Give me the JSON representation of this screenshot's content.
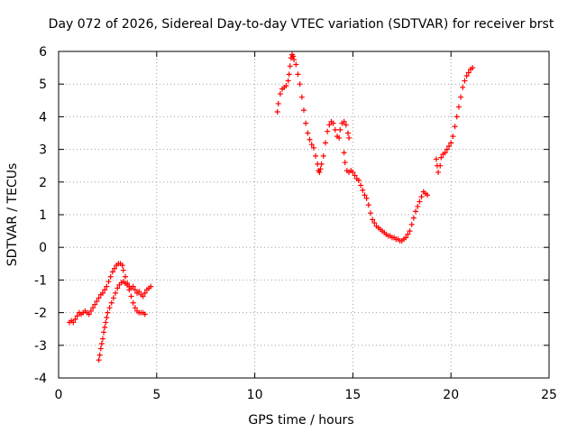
{
  "chart_data": {
    "type": "scatter",
    "title": "Day 072 of 2026, Sidereal Day-to-day VTEC variation (SDTVAR) for receiver brst",
    "xlabel": "GPS time / hours",
    "ylabel": "SDTVAR / TECUs",
    "xlim": [
      0,
      25
    ],
    "ylim": [
      -4,
      6
    ],
    "xticks": [
      "0",
      "5",
      "10",
      "15",
      "20",
      "25"
    ],
    "yticks": [
      "-4",
      "-3",
      "-2",
      "-1",
      "0",
      "1",
      "2",
      "3",
      "4",
      "5",
      "6"
    ],
    "grid": true,
    "marker": "+",
    "series": [
      {
        "name": "SDTVAR",
        "color": "#ff0000",
        "points": [
          [
            0.55,
            -2.3
          ],
          [
            0.65,
            -2.25
          ],
          [
            0.75,
            -2.3
          ],
          [
            0.85,
            -2.2
          ],
          [
            0.95,
            -2.1
          ],
          [
            1.05,
            -2.0
          ],
          [
            1.15,
            -2.05
          ],
          [
            1.25,
            -2.0
          ],
          [
            1.35,
            -1.95
          ],
          [
            1.45,
            -2.0
          ],
          [
            1.55,
            -2.05
          ],
          [
            1.65,
            -1.95
          ],
          [
            1.75,
            -1.85
          ],
          [
            1.85,
            -1.75
          ],
          [
            1.95,
            -1.65
          ],
          [
            2.05,
            -1.55
          ],
          [
            2.15,
            -1.45
          ],
          [
            2.25,
            -1.4
          ],
          [
            2.35,
            -1.3
          ],
          [
            2.45,
            -1.2
          ],
          [
            2.55,
            -1.05
          ],
          [
            2.65,
            -0.9
          ],
          [
            2.75,
            -0.75
          ],
          [
            2.85,
            -0.65
          ],
          [
            2.95,
            -0.55
          ],
          [
            3.05,
            -0.5
          ],
          [
            3.15,
            -0.5
          ],
          [
            3.25,
            -0.55
          ],
          [
            3.3,
            -0.7
          ],
          [
            3.4,
            -0.9
          ],
          [
            3.5,
            -1.1
          ],
          [
            3.6,
            -1.3
          ],
          [
            3.7,
            -1.5
          ],
          [
            3.8,
            -1.7
          ],
          [
            3.9,
            -1.85
          ],
          [
            4.0,
            -1.95
          ],
          [
            4.1,
            -2.0
          ],
          [
            4.2,
            -2.0
          ],
          [
            4.3,
            -2.0
          ],
          [
            4.4,
            -2.05
          ],
          [
            2.05,
            -3.45
          ],
          [
            2.1,
            -3.3
          ],
          [
            2.15,
            -3.1
          ],
          [
            2.2,
            -2.95
          ],
          [
            2.25,
            -2.8
          ],
          [
            2.3,
            -2.6
          ],
          [
            2.35,
            -2.45
          ],
          [
            2.4,
            -2.3
          ],
          [
            2.45,
            -2.15
          ],
          [
            2.5,
            -2.0
          ],
          [
            2.6,
            -1.85
          ],
          [
            2.7,
            -1.7
          ],
          [
            2.8,
            -1.55
          ],
          [
            2.9,
            -1.4
          ],
          [
            3.0,
            -1.25
          ],
          [
            3.1,
            -1.15
          ],
          [
            3.2,
            -1.08
          ],
          [
            3.3,
            -1.05
          ],
          [
            3.4,
            -1.1
          ],
          [
            3.5,
            -1.15
          ],
          [
            3.6,
            -1.2
          ],
          [
            3.7,
            -1.25
          ],
          [
            3.8,
            -1.2
          ],
          [
            3.9,
            -1.3
          ],
          [
            4.0,
            -1.4
          ],
          [
            4.1,
            -1.35
          ],
          [
            4.2,
            -1.45
          ],
          [
            4.3,
            -1.5
          ],
          [
            4.4,
            -1.4
          ],
          [
            4.5,
            -1.3
          ],
          [
            4.6,
            -1.25
          ],
          [
            4.7,
            -1.2
          ],
          [
            11.15,
            4.15
          ],
          [
            11.2,
            4.4
          ],
          [
            11.3,
            4.7
          ],
          [
            11.4,
            4.85
          ],
          [
            11.5,
            4.9
          ],
          [
            11.6,
            4.95
          ],
          [
            11.7,
            5.1
          ],
          [
            11.75,
            5.3
          ],
          [
            11.8,
            5.55
          ],
          [
            11.85,
            5.8
          ],
          [
            11.9,
            5.9
          ],
          [
            11.95,
            5.85
          ],
          [
            12.0,
            5.75
          ],
          [
            12.1,
            5.6
          ],
          [
            12.2,
            5.3
          ],
          [
            12.3,
            5.0
          ],
          [
            12.4,
            4.6
          ],
          [
            12.5,
            4.2
          ],
          [
            12.6,
            3.8
          ],
          [
            12.7,
            3.5
          ],
          [
            12.8,
            3.3
          ],
          [
            12.9,
            3.15
          ],
          [
            13.0,
            3.05
          ],
          [
            13.1,
            2.8
          ],
          [
            13.2,
            2.55
          ],
          [
            13.25,
            2.35
          ],
          [
            13.3,
            2.3
          ],
          [
            13.35,
            2.4
          ],
          [
            13.4,
            2.55
          ],
          [
            13.5,
            2.8
          ],
          [
            13.6,
            3.2
          ],
          [
            13.7,
            3.55
          ],
          [
            13.8,
            3.75
          ],
          [
            13.9,
            3.85
          ],
          [
            14.0,
            3.8
          ],
          [
            14.1,
            3.6
          ],
          [
            14.2,
            3.4
          ],
          [
            14.3,
            3.35
          ],
          [
            14.35,
            3.6
          ],
          [
            14.45,
            3.8
          ],
          [
            14.55,
            3.85
          ],
          [
            14.65,
            3.75
          ],
          [
            14.75,
            3.5
          ],
          [
            14.8,
            3.35
          ],
          [
            14.55,
            2.9
          ],
          [
            14.6,
            2.6
          ],
          [
            14.7,
            2.35
          ],
          [
            14.8,
            2.3
          ],
          [
            14.9,
            2.35
          ],
          [
            15.0,
            2.3
          ],
          [
            15.1,
            2.2
          ],
          [
            15.2,
            2.1
          ],
          [
            15.3,
            2.05
          ],
          [
            15.4,
            1.9
          ],
          [
            15.5,
            1.75
          ],
          [
            15.6,
            1.6
          ],
          [
            15.7,
            1.5
          ],
          [
            15.8,
            1.3
          ],
          [
            15.9,
            1.05
          ],
          [
            16.0,
            0.85
          ],
          [
            16.1,
            0.75
          ],
          [
            16.2,
            0.65
          ],
          [
            16.3,
            0.6
          ],
          [
            16.4,
            0.55
          ],
          [
            16.5,
            0.5
          ],
          [
            16.6,
            0.45
          ],
          [
            16.7,
            0.4
          ],
          [
            16.8,
            0.35
          ],
          [
            16.9,
            0.35
          ],
          [
            17.0,
            0.3
          ],
          [
            17.1,
            0.3
          ],
          [
            17.2,
            0.25
          ],
          [
            17.3,
            0.25
          ],
          [
            17.4,
            0.2
          ],
          [
            17.5,
            0.2
          ],
          [
            17.6,
            0.25
          ],
          [
            17.7,
            0.3
          ],
          [
            17.8,
            0.4
          ],
          [
            17.9,
            0.5
          ],
          [
            18.0,
            0.7
          ],
          [
            18.1,
            0.9
          ],
          [
            18.2,
            1.1
          ],
          [
            18.3,
            1.25
          ],
          [
            18.4,
            1.4
          ],
          [
            18.5,
            1.55
          ],
          [
            18.6,
            1.7
          ],
          [
            18.7,
            1.65
          ],
          [
            18.8,
            1.6
          ],
          [
            19.25,
            2.7
          ],
          [
            19.3,
            2.5
          ],
          [
            19.35,
            2.3
          ],
          [
            19.45,
            2.5
          ],
          [
            19.5,
            2.75
          ],
          [
            19.6,
            2.85
          ],
          [
            19.7,
            2.9
          ],
          [
            19.8,
            3.0
          ],
          [
            19.9,
            3.1
          ],
          [
            20.0,
            3.2
          ],
          [
            20.1,
            3.4
          ],
          [
            20.2,
            3.7
          ],
          [
            20.3,
            4.0
          ],
          [
            20.4,
            4.3
          ],
          [
            20.5,
            4.6
          ],
          [
            20.6,
            4.9
          ],
          [
            20.7,
            5.1
          ],
          [
            20.8,
            5.25
          ],
          [
            20.9,
            5.35
          ],
          [
            21.0,
            5.45
          ],
          [
            21.1,
            5.5
          ]
        ]
      }
    ]
  }
}
